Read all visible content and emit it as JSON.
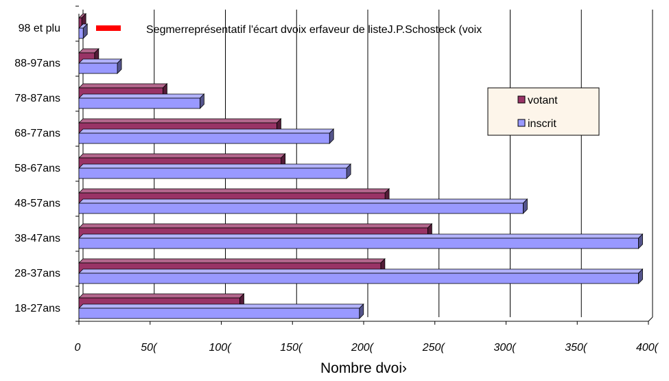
{
  "chart_data": {
    "type": "bar",
    "orientation": "horizontal",
    "categories": [
      "18-27ans",
      "28-37ans",
      "38-47ans",
      "48-57ans",
      "58-67ans",
      "68-77ans",
      "78-87ans",
      "88-97ans",
      "98 et plu"
    ],
    "series": [
      {
        "name": "votant",
        "color": "#993366",
        "values": [
          1130,
          2120,
          2450,
          2150,
          1420,
          1390,
          590,
          110,
          20
        ]
      },
      {
        "name": "inscrit",
        "color": "#9999ff",
        "values": [
          1970,
          3930,
          3930,
          3120,
          1880,
          1760,
          850,
          270,
          30
        ]
      }
    ],
    "xlabel": "Nombre dvoi›",
    "ylabel": "",
    "xlim": [
      0,
      4000
    ],
    "x_ticks": [
      "0",
      "50(",
      "100(",
      "150(",
      "200(",
      "250(",
      "300(",
      "350(",
      "400("
    ],
    "grid": "vertical",
    "legend_position": "right",
    "annotation": {
      "text": "Segmerreprésentatif l'écart dvoix erfaveur de listeJ.P.Schosteck (voix",
      "color": "#ff0000"
    }
  }
}
